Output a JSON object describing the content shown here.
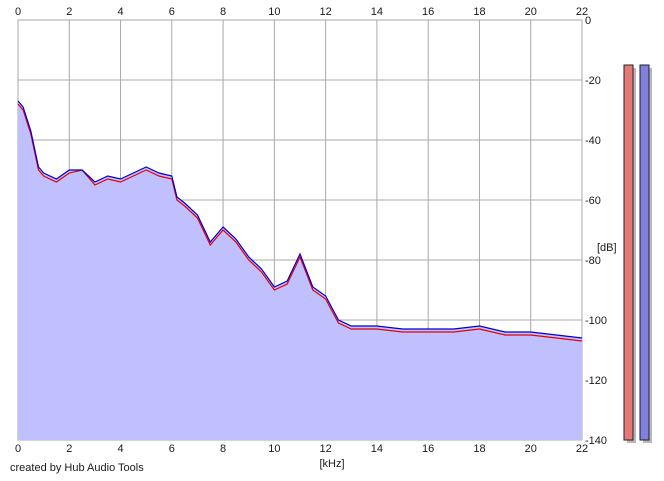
{
  "chart_data": {
    "type": "area",
    "xlabel": "[kHz]",
    "ylabel": "[dB]",
    "xlim": [
      0,
      22
    ],
    "ylim": [
      -140,
      0
    ],
    "x_ticks": [
      0,
      2,
      4,
      6,
      8,
      10,
      12,
      14,
      16,
      18,
      20,
      22
    ],
    "y_ticks": [
      0,
      -20,
      -40,
      -60,
      -80,
      -100,
      -120,
      -140
    ],
    "grid": true,
    "series": [
      {
        "color": "#e60000",
        "x": [
          0,
          0.2,
          0.5,
          0.8,
          1,
          1.5,
          2,
          2.5,
          3,
          3.5,
          4,
          4.5,
          5,
          5.5,
          6,
          6.2,
          6.5,
          7,
          7.5,
          8,
          8.5,
          9,
          9.5,
          10,
          10.5,
          11,
          11.5,
          12,
          12.5,
          13,
          14,
          15,
          16,
          17,
          18,
          19,
          20,
          21,
          22
        ],
        "values": [
          -28,
          -30,
          -38,
          -50,
          -52,
          -54,
          -51,
          -50,
          -55,
          -53,
          -54,
          -52,
          -50,
          -52,
          -53,
          -60,
          -62,
          -66,
          -75,
          -70,
          -74,
          -80,
          -84,
          -90,
          -88,
          -79,
          -90,
          -93,
          -101,
          -103,
          -103,
          -104,
          -104,
          -104,
          -103,
          -105,
          -105,
          -106,
          -107
        ]
      },
      {
        "color": "#0000cc",
        "x": [
          0,
          0.2,
          0.5,
          0.8,
          1,
          1.5,
          2,
          2.5,
          3,
          3.5,
          4,
          4.5,
          5,
          5.5,
          6,
          6.2,
          6.5,
          7,
          7.5,
          8,
          8.5,
          9,
          9.5,
          10,
          10.5,
          11,
          11.5,
          12,
          12.5,
          13,
          14,
          15,
          16,
          17,
          18,
          19,
          20,
          21,
          22
        ],
        "values": [
          -27,
          -29,
          -37,
          -49,
          -51,
          -53,
          -50,
          -50,
          -54,
          -52,
          -53,
          -51,
          -49,
          -51,
          -52,
          -59,
          -61,
          -65,
          -74,
          -69,
          -73,
          -79,
          -83,
          -89,
          -87,
          -78,
          -89,
          -92,
          -100,
          -102,
          -102,
          -103,
          -103,
          -103,
          -102,
          -104,
          -104,
          -105,
          -106
        ]
      }
    ],
    "level_bars": [
      {
        "color": "#e87878",
        "value": -15
      },
      {
        "color": "#8080e0",
        "value": -15
      }
    ]
  },
  "credit": "created by Hub Audio Tools"
}
